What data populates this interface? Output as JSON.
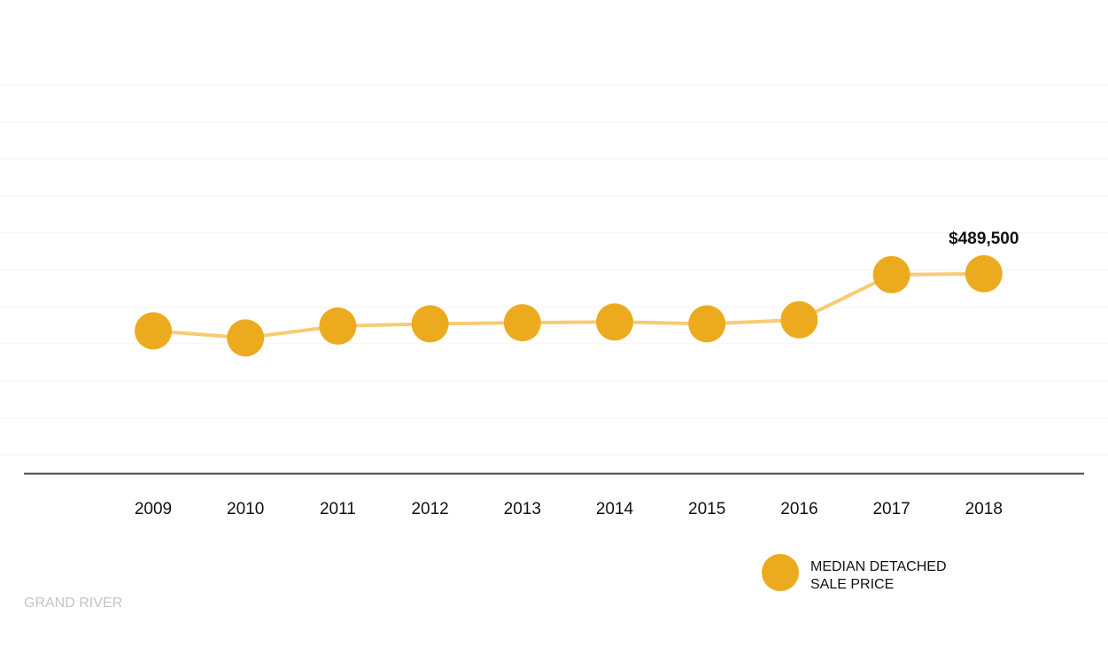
{
  "chart_data": {
    "type": "line",
    "categories": [
      "2009",
      "2010",
      "2011",
      "2012",
      "2013",
      "2014",
      "2015",
      "2016",
      "2017",
      "2018"
    ],
    "series": [
      {
        "name": "MEDIAN DETACHED SALE PRICE",
        "values": [
          335000,
          316000,
          348000,
          354000,
          357000,
          359000,
          354000,
          365000,
          487000,
          489500
        ]
      }
    ],
    "ylim": [
      0,
      1000000
    ],
    "grid": true,
    "legend": "bottom-right",
    "annotations": [
      {
        "category": "2018",
        "text": "$489,500"
      }
    ],
    "source": "GRAND RIVER",
    "colors": {
      "marker": "#ECAB1F",
      "line": "#F8CB73",
      "grid": "#f4f4f4",
      "axis": "#444444",
      "source": "#c4c4c4"
    }
  },
  "legend": {
    "line1": "MEDIAN DETACHED",
    "line2": "SALE PRICE"
  }
}
